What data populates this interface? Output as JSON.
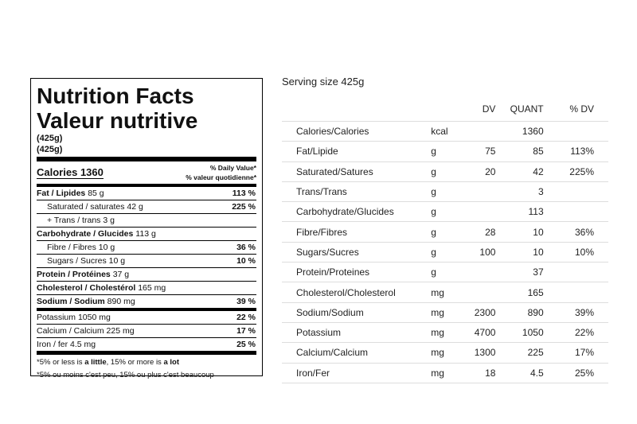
{
  "label": {
    "title": "Nutrition Facts",
    "subtitle": "Valeur nutritive",
    "serving": [
      "(425g)",
      "(425g)"
    ],
    "calories": {
      "name": "Calories",
      "value": "1360"
    },
    "daily_value": [
      "% Daily Value*",
      "% valeur quotidienne*"
    ],
    "rows": [
      {
        "name": "Fat / Lipides",
        "amount": "85 g",
        "dv": "113 %"
      },
      {
        "name": "Saturated / saturates",
        "amount": "42 g",
        "dv": "225 %"
      },
      {
        "name": "+ Trans / trans",
        "amount": "3 g"
      },
      {
        "name": "Carbohydrate / Glucides",
        "amount": "113 g"
      },
      {
        "name": "Fibre / Fibres",
        "amount": "10 g",
        "dv": "36 %"
      },
      {
        "name": "Sugars / Sucres",
        "amount": "10 g",
        "dv": "10 %"
      },
      {
        "name": "Protein / Protéines",
        "amount": "37 g"
      },
      {
        "name": "Cholesterol / Cholestérol",
        "amount": "165 mg"
      },
      {
        "name": "Sodium / Sodium",
        "amount": "890 mg",
        "dv": "39 %"
      },
      {
        "name": "Potassium",
        "amount": "1050 mg",
        "dv": "22 %"
      },
      {
        "name": "Calcium / Calcium",
        "amount": "225 mg",
        "dv": "17 %"
      },
      {
        "name": "Iron / fer",
        "amount": "4.5 mg",
        "dv": "25 %"
      }
    ],
    "footnote_en": [
      "*5% or less is ",
      "a little",
      ", 15% or more is ",
      "a lot"
    ],
    "footnote_fr": "*5% ou moins c'est peu, 15% ou plus c'est beaucoup"
  },
  "table": {
    "serving_size": "Serving size 425g",
    "columns": [
      "DV",
      "QUANT",
      "% DV"
    ],
    "rows": [
      {
        "name": "Calories/Calories",
        "unit": "kcal",
        "quant": "1360"
      },
      {
        "name": "Fat/Lipide",
        "unit": "g",
        "dv": "75",
        "quant": "85",
        "pct": "113%"
      },
      {
        "name": "Saturated/Satures",
        "unit": "g",
        "dv": "20",
        "quant": "42",
        "pct": "225%"
      },
      {
        "name": "Trans/Trans",
        "unit": "g",
        "quant": "3"
      },
      {
        "name": "Carbohydrate/Glucides",
        "unit": "g",
        "quant": "113"
      },
      {
        "name": "Fibre/Fibres",
        "unit": "g",
        "dv": "28",
        "quant": "10",
        "pct": "36%"
      },
      {
        "name": "Sugars/Sucres",
        "unit": "g",
        "dv": "100",
        "quant": "10",
        "pct": "10%"
      },
      {
        "name": "Protein/Proteines",
        "unit": "g",
        "quant": "37"
      },
      {
        "name": "Cholesterol/Cholesterol",
        "unit": "mg",
        "quant": "165"
      },
      {
        "name": "Sodium/Sodium",
        "unit": "mg",
        "dv": "2300",
        "quant": "890",
        "pct": "39%"
      },
      {
        "name": "Potassium",
        "unit": "mg",
        "dv": "4700",
        "quant": "1050",
        "pct": "22%"
      },
      {
        "name": "Calcium/Calcium",
        "unit": "mg",
        "dv": "1300",
        "quant": "225",
        "pct": "17%"
      },
      {
        "name": "Iron/Fer",
        "unit": "mg",
        "dv": "18",
        "quant": "4.5",
        "pct": "25%"
      }
    ]
  }
}
